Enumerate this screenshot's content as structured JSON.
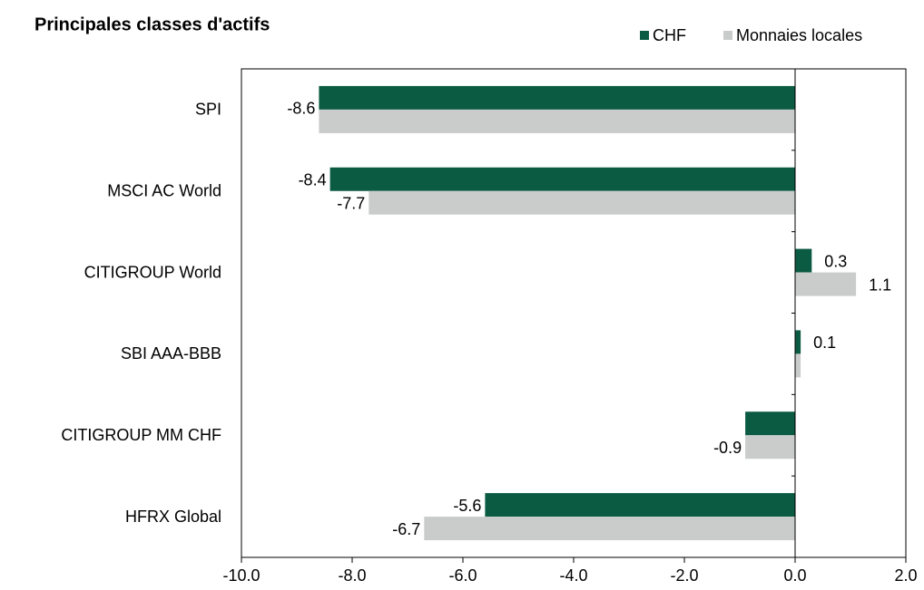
{
  "chart_data": {
    "type": "hbar",
    "title": "Principales  classes  d'actifs",
    "categories": [
      "SPI",
      "MSCI AC World",
      "CITIGROUP World",
      "SBI AAA-BBB",
      "CITIGROUP MM CHF",
      "HFRX  Global"
    ],
    "series": [
      {
        "name": "CHF",
        "color": "#0b5a42",
        "values": [
          -8.6,
          -8.4,
          0.3,
          0.1,
          -0.9,
          -5.6
        ],
        "value_labels": [
          "-8.6",
          "-8.4",
          "0.3",
          "0.1",
          null,
          "-5.6"
        ]
      },
      {
        "name": "Monnaies locales",
        "color": "#c9cccb",
        "values": [
          -8.6,
          -7.7,
          1.1,
          0.1,
          -0.9,
          -6.7
        ],
        "value_labels": [
          null,
          "-7.7",
          "1.1",
          null,
          "-0.9",
          "-6.7"
        ]
      }
    ],
    "xlim": [
      -10,
      2
    ],
    "xticks": [
      {
        "value": -10,
        "label": "-10.0"
      },
      {
        "value": -8,
        "label": "-8.0"
      },
      {
        "value": -6,
        "label": "-6.0"
      },
      {
        "value": -4,
        "label": "-4.0"
      },
      {
        "value": -2,
        "label": "-2.0"
      },
      {
        "value": 0,
        "label": "0.0"
      },
      {
        "value": 2,
        "label": "2.0"
      }
    ],
    "legend": "top-right"
  }
}
